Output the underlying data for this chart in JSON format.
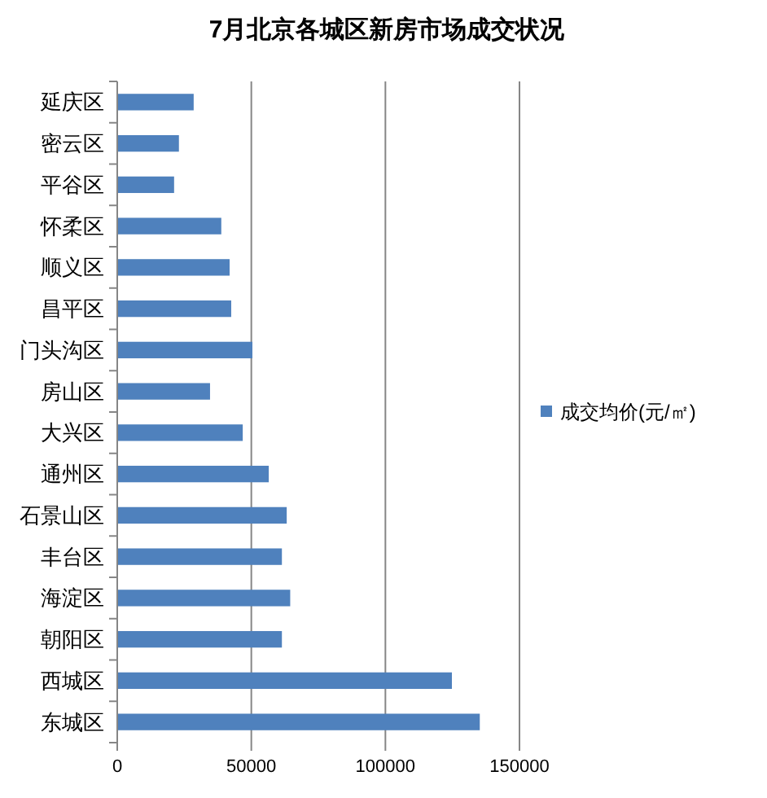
{
  "chart_data": {
    "type": "bar",
    "orientation": "horizontal",
    "title": "7月北京各城区新房市场成交状况",
    "categories": [
      "延庆区",
      "密云区",
      "平谷区",
      "怀柔区",
      "顺义区",
      "昌平区",
      "门头沟区",
      "房山区",
      "大兴区",
      "通州区",
      "石景山区",
      "丰台区",
      "海淀区",
      "朝阳区",
      "西城区",
      "东城区"
    ],
    "series": [
      {
        "name": "成交均价(元/㎡)",
        "color": "#4f81bd",
        "values": [
          28500,
          23000,
          21200,
          38800,
          41900,
          42500,
          50400,
          34600,
          46800,
          56500,
          63200,
          61400,
          64500,
          61400,
          124800,
          135200
        ]
      }
    ],
    "xlim": [
      0,
      150000
    ],
    "xticks": [
      0,
      50000,
      100000,
      150000
    ],
    "grid": "x",
    "legend": "right"
  }
}
